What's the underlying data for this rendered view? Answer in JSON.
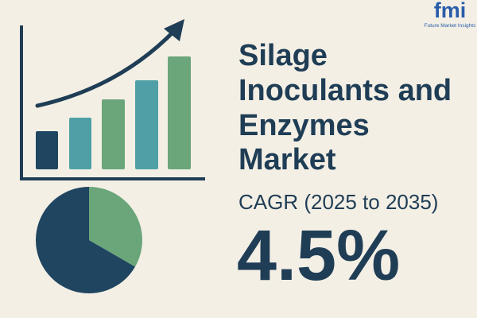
{
  "logo": {
    "mark": "fmi",
    "name": "Future Market Insights"
  },
  "title_lines": [
    "Silage",
    "Inoculants and",
    "Enzymes",
    "Market"
  ],
  "cagr_label": "CAGR (2025 to 2035)",
  "cagr_value": "4.5%"
}
